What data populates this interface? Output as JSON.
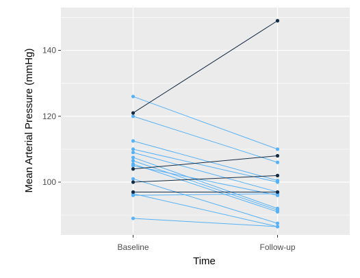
{
  "chart_data": {
    "type": "line",
    "xlabel": "Time",
    "ylabel": "Mean Arterial Pressure (mmHg)",
    "categories": [
      "Baseline",
      "Follow-up"
    ],
    "ylim": [
      84,
      153
    ],
    "yticks": [
      100,
      120,
      140
    ],
    "grid": true,
    "legend": "none",
    "colors": {
      "panel": "#EBEBEB",
      "grid": "#FFFFFF",
      "increase": "#132B43",
      "decrease": "#56B1F7",
      "tick_text": "#4D4D4D"
    },
    "series": [
      {
        "values": [
          121,
          149
        ],
        "color": "#132B43"
      },
      {
        "values": [
          104,
          108
        ],
        "color": "#132B43"
      },
      {
        "values": [
          100,
          102
        ],
        "color": "#132B43"
      },
      {
        "values": [
          97,
          97
        ],
        "color": "#132B43"
      },
      {
        "values": [
          126,
          110
        ],
        "color": "#56B1F7"
      },
      {
        "values": [
          120,
          106
        ],
        "color": "#56B1F7"
      },
      {
        "values": [
          112.5,
          100.5
        ],
        "color": "#56B1F7"
      },
      {
        "values": [
          110,
          100
        ],
        "color": "#56B1F7"
      },
      {
        "values": [
          109,
          97
        ],
        "color": "#56B1F7"
      },
      {
        "values": [
          107.5,
          92
        ],
        "color": "#56B1F7"
      },
      {
        "values": [
          106.5,
          91.5
        ],
        "color": "#56B1F7"
      },
      {
        "values": [
          105.5,
          91
        ],
        "color": "#56B1F7"
      },
      {
        "values": [
          105,
          96
        ],
        "color": "#56B1F7"
      },
      {
        "values": [
          101,
          87.5
        ],
        "color": "#56B1F7"
      },
      {
        "values": [
          96.5,
          86.5
        ],
        "color": "#56B1F7"
      },
      {
        "values": [
          96,
          96.5
        ],
        "color": "#56B1F7"
      },
      {
        "values": [
          89,
          86.5
        ],
        "color": "#56B1F7"
      }
    ]
  }
}
